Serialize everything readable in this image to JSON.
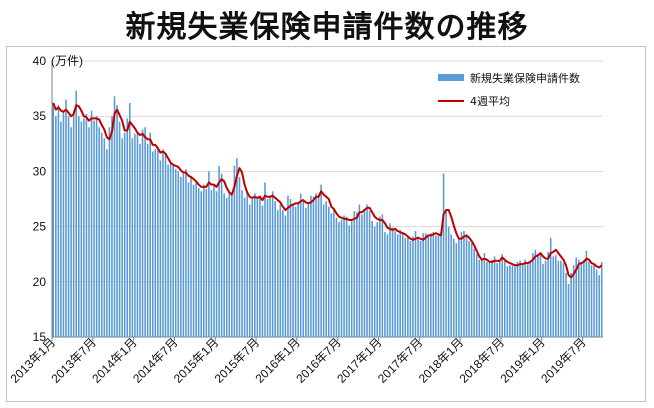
{
  "title": "新規失業保険申請件数の推移",
  "chart_data": {
    "type": "bar",
    "title": "新規失業保険申請件数の推移",
    "ylabel": "(万件)",
    "ylim": [
      15,
      40
    ],
    "yticks": [
      "15",
      "20",
      "25",
      "30",
      "35",
      "40"
    ],
    "x_start": "2013-01",
    "x_end": "2019-10",
    "x_tick_labels": [
      "2013年1月",
      "2013年7月",
      "2014年1月",
      "2014年7月",
      "2015年1月",
      "2015年7月",
      "2016年1月",
      "2016年7月",
      "2017年1月",
      "2017年7月",
      "2018年1月",
      "2018年7月",
      "2019年1月",
      "2019年7月"
    ],
    "legend": {
      "position": "top-right"
    },
    "colors": {
      "bars": "#5b9bd5",
      "line": "#c00000"
    },
    "series": [
      {
        "name": "新規失業保険申請件数",
        "kind": "bar",
        "values": [
          36.2,
          35.0,
          36.0,
          34.5,
          35.5,
          36.5,
          35.0,
          34.0,
          35.5,
          37.3,
          35.0,
          34.5,
          34.8,
          35.2,
          34.0,
          35.5,
          34.6,
          35.0,
          34.0,
          33.5,
          33.0,
          32.0,
          34.0,
          35.0,
          36.8,
          36.0,
          34.5,
          33.0,
          33.5,
          34.8,
          36.2,
          33.0,
          33.4,
          33.5,
          32.5,
          33.8,
          34.0,
          32.5,
          33.5,
          31.8,
          32.0,
          32.2,
          31.0,
          32.0,
          31.5,
          30.6,
          30.8,
          30.5,
          30.2,
          30.0,
          29.5,
          29.8,
          30.2,
          29.0,
          29.5,
          28.8,
          29.0,
          28.5,
          28.2,
          28.8,
          28.4,
          30.0,
          28.3,
          28.7,
          28.2,
          30.5,
          29.8,
          28.0,
          27.6,
          28.0,
          28.0,
          30.5,
          31.2,
          29.5,
          28.3,
          27.6,
          28.2,
          27.0,
          27.5,
          28.0,
          27.5,
          27.8,
          26.9,
          29.0,
          27.5,
          27.8,
          28.2,
          27.3,
          26.5,
          27.0,
          26.5,
          26.0,
          27.8,
          27.5,
          27.0,
          26.8,
          27.2,
          28.0,
          27.3,
          26.7,
          27.0,
          27.8,
          27.7,
          28.0,
          27.9,
          28.8,
          27.0,
          27.3,
          26.8,
          26.2,
          26.5,
          25.8,
          25.4,
          25.6,
          26.0,
          25.9,
          25.1,
          25.5,
          26.4,
          26.3,
          27.0,
          26.1,
          26.6,
          27.0,
          26.4,
          25.5,
          25.0,
          25.4,
          25.9,
          26.1,
          24.5,
          24.3,
          25.3,
          24.9,
          24.6,
          24.3,
          24.7,
          24.4,
          24.0,
          24.0,
          23.7,
          24.1,
          24.6,
          23.9,
          23.7,
          24.4,
          24.4,
          24.1,
          24.4,
          24.5,
          24.2,
          24.2,
          24.5,
          29.8,
          26.5,
          25.0,
          24.3,
          23.9,
          23.5,
          23.8,
          24.5,
          24.6,
          24.1,
          23.7,
          23.5,
          23.0,
          22.5,
          22.0,
          22.0,
          22.6,
          21.8,
          21.7,
          22.0,
          22.3,
          21.7,
          21.8,
          22.5,
          21.9,
          21.4,
          21.5,
          21.5,
          21.4,
          21.8,
          21.9,
          21.5,
          22.0,
          21.6,
          21.9,
          22.6,
          22.9,
          22.5,
          22.6,
          21.6,
          21.9,
          22.7,
          24.0,
          22.3,
          22.4,
          21.9,
          21.9,
          21.7,
          20.8,
          19.8,
          20.8,
          21.5,
          22.2,
          22.0,
          21.8,
          22.0,
          22.8,
          21.8,
          21.5,
          21.6,
          21.1,
          20.6,
          21.8
        ]
      },
      {
        "name": "4週平均",
        "kind": "line",
        "values": [
          36.2,
          35.6,
          35.8,
          35.5,
          35.4,
          35.6,
          35.3,
          35.0,
          35.2,
          36.0,
          35.9,
          35.5,
          35.0,
          34.9,
          34.6,
          34.8,
          34.8,
          34.8,
          34.7,
          34.2,
          33.8,
          33.1,
          32.9,
          33.6,
          35.2,
          35.6,
          35.1,
          34.6,
          33.7,
          33.7,
          34.5,
          34.2,
          33.9,
          33.5,
          33.3,
          33.4,
          33.1,
          32.9,
          32.9,
          32.4,
          32.4,
          32.1,
          31.7,
          31.8,
          31.6,
          31.2,
          30.8,
          30.6,
          30.5,
          30.4,
          30.1,
          29.9,
          29.9,
          29.6,
          29.5,
          29.3,
          29.1,
          28.8,
          28.6,
          28.6,
          28.6,
          29.0,
          28.8,
          28.8,
          28.6,
          29.0,
          29.3,
          29.1,
          28.5,
          28.1,
          27.9,
          28.6,
          29.6,
          30.3,
          29.9,
          28.8,
          28.1,
          27.7,
          27.6,
          27.7,
          27.6,
          27.7,
          27.4,
          27.8,
          27.7,
          27.7,
          27.8,
          27.6,
          27.4,
          27.2,
          26.8,
          26.5,
          26.7,
          26.9,
          27.0,
          27.1,
          27.1,
          27.3,
          27.4,
          27.2,
          27.1,
          27.2,
          27.4,
          27.7,
          27.7,
          28.2,
          27.9,
          27.7,
          27.5,
          26.8,
          26.6,
          26.2,
          25.9,
          25.8,
          25.7,
          25.7,
          25.6,
          25.6,
          25.7,
          25.8,
          26.3,
          26.3,
          26.5,
          26.7,
          26.7,
          26.3,
          25.9,
          25.7,
          25.6,
          25.6,
          25.3,
          24.9,
          24.8,
          24.7,
          24.8,
          24.6,
          24.5,
          24.4,
          24.3,
          24.1,
          23.9,
          23.8,
          23.9,
          24.0,
          23.9,
          23.8,
          24.0,
          24.2,
          24.2,
          24.3,
          24.4,
          24.3,
          24.2,
          26.1,
          26.5,
          26.5,
          25.9,
          25.1,
          24.4,
          23.9,
          23.9,
          24.1,
          24.2,
          24.0,
          23.7,
          23.3,
          22.8,
          22.3,
          22.0,
          22.1,
          22.0,
          21.8,
          21.8,
          21.9,
          21.9,
          21.9,
          22.2,
          22.0,
          21.8,
          21.7,
          21.6,
          21.5,
          21.5,
          21.6,
          21.6,
          21.7,
          21.7,
          21.8,
          22.0,
          22.3,
          22.4,
          22.6,
          22.3,
          22.1,
          22.1,
          22.6,
          22.7,
          22.9,
          22.6,
          22.3,
          22.0,
          21.5,
          20.6,
          20.4,
          20.7,
          21.1,
          21.6,
          21.7,
          21.8,
          22.1,
          22.0,
          21.7,
          21.6,
          21.4,
          21.3,
          21.5
        ]
      }
    ]
  }
}
